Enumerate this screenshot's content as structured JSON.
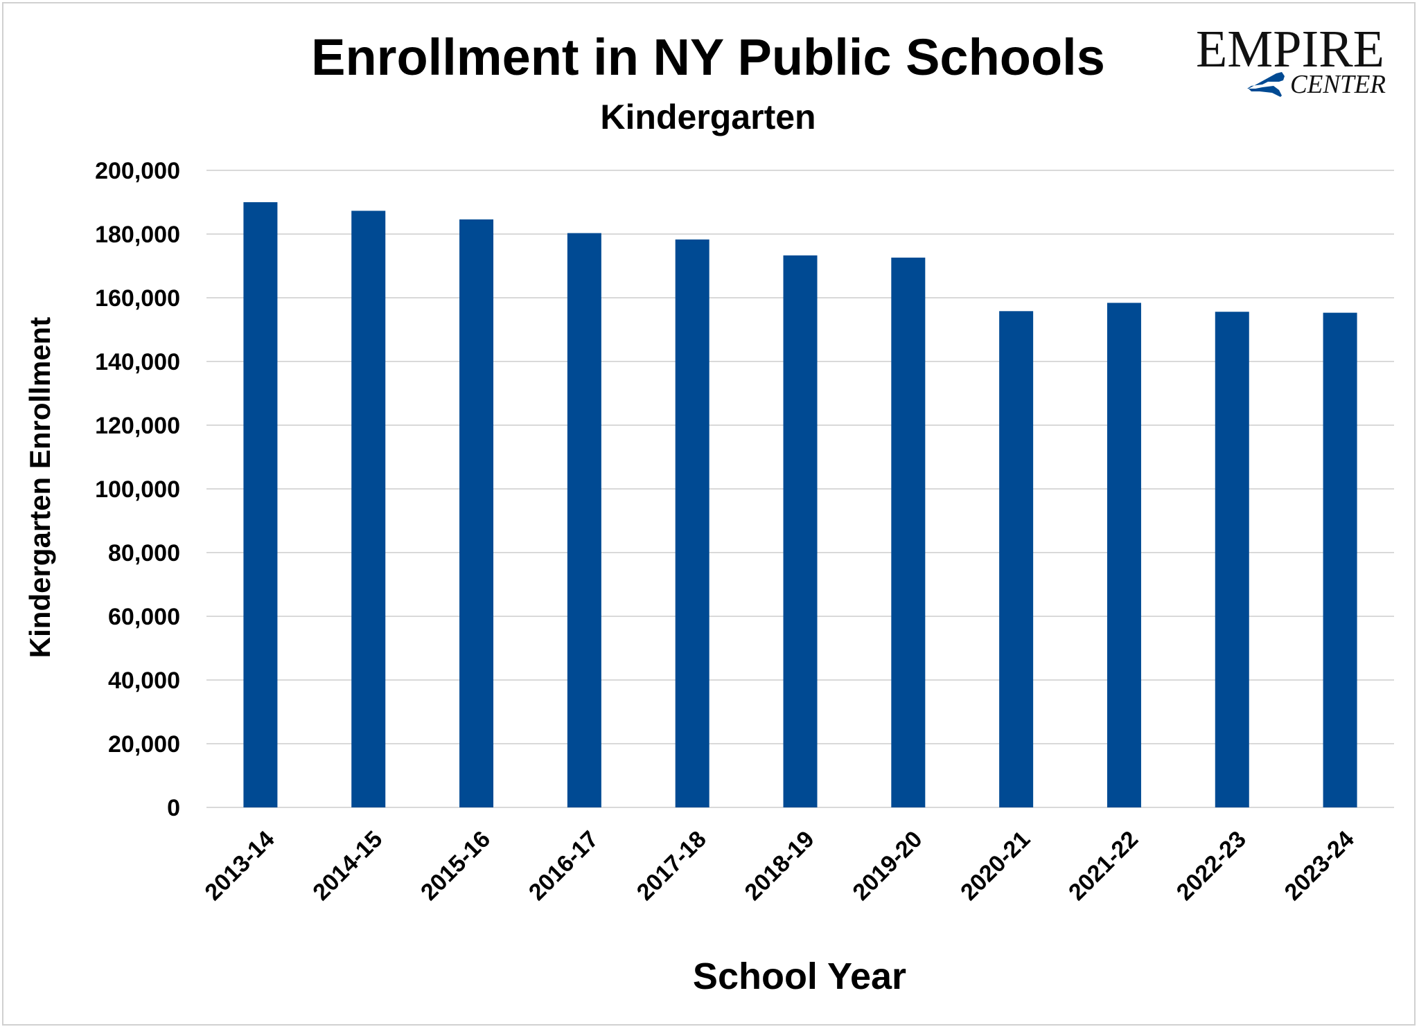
{
  "chart_data": {
    "type": "bar",
    "title": "Enrollment in NY Public Schools",
    "subtitle": "Kindergarten",
    "xlabel": "School Year",
    "ylabel": "Kindergarten Enrollment",
    "categories": [
      "2013-14",
      "2014-15",
      "2015-16",
      "2016-17",
      "2017-18",
      "2018-19",
      "2019-20",
      "2020-21",
      "2021-22",
      "2022-23",
      "2023-24"
    ],
    "series": [
      {
        "values": [
          190000,
          187300,
          184600,
          180300,
          178300,
          173300,
          172600,
          155800,
          158400,
          155600,
          155300
        ],
        "color": "#004a93"
      }
    ],
    "ylim": [
      0,
      200000
    ],
    "yticks": [
      0,
      20000,
      40000,
      60000,
      80000,
      100000,
      120000,
      140000,
      160000,
      180000,
      200000
    ],
    "ytick_labels": [
      "0",
      "20,000",
      "40,000",
      "60,000",
      "80,000",
      "100,000",
      "120,000",
      "140,000",
      "160,000",
      "180,000",
      "200,000"
    ],
    "grid": true,
    "gridline_color": "#d9d9d9",
    "legend": "none"
  },
  "logo": {
    "word_top": "EMPIRE",
    "word_bottom": "CENTER",
    "state_color": "#004a93"
  }
}
